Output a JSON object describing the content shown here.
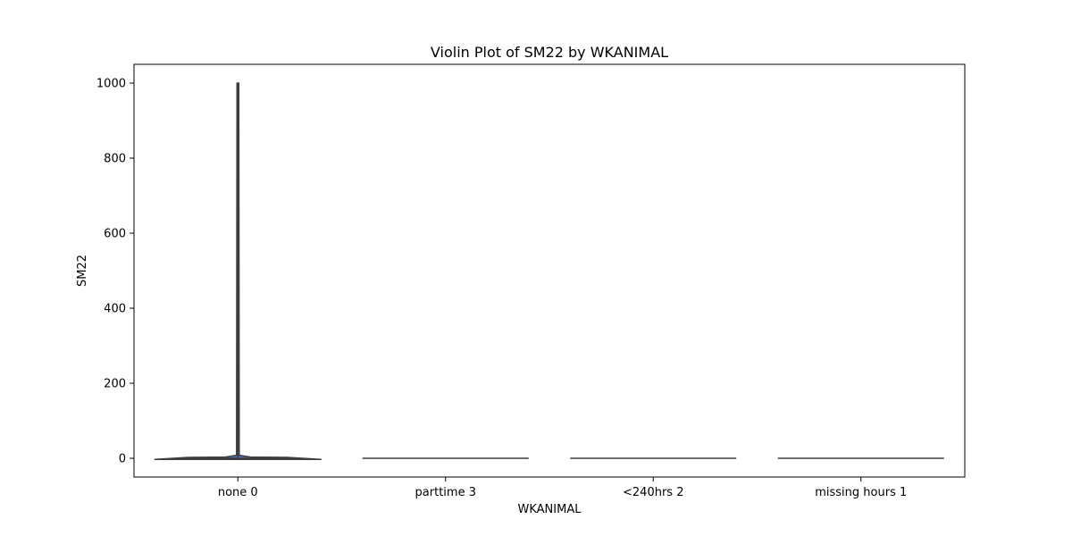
{
  "chart_data": {
    "type": "violin",
    "title": "Violin Plot of SM22 by WKANIMAL",
    "xlabel": "WKANIMAL",
    "ylabel": "SM22",
    "categories": [
      "none 0",
      "parttime 3",
      "<240hrs 2",
      "missing hours 1"
    ],
    "yticks": [
      0,
      200,
      400,
      600,
      800,
      1000
    ],
    "ylim": [
      -50,
      1050
    ],
    "grid": false,
    "legend": "none",
    "violins": [
      {
        "category": "none 0",
        "min": -3,
        "max": 1000,
        "median": 0,
        "q1": 0,
        "q3": 0,
        "density_peak_value": 0,
        "max_half_width": 0.8,
        "shape": "long thin tail up to max"
      },
      {
        "category": "parttime 3",
        "min": 0,
        "max": 0,
        "median": 0,
        "q1": 0,
        "q3": 0,
        "density_peak_value": 0,
        "max_half_width": 0.8,
        "shape": "flat"
      },
      {
        "category": "<240hrs 2",
        "min": 0,
        "max": 0,
        "median": 0,
        "q1": 0,
        "q3": 0,
        "density_peak_value": 0,
        "max_half_width": 0.8,
        "shape": "flat"
      },
      {
        "category": "missing hours 1",
        "min": 0,
        "max": 0,
        "median": 0,
        "q1": 0,
        "q3": 0,
        "density_peak_value": 0,
        "max_half_width": 0.8,
        "shape": "flat"
      }
    ],
    "colors": {
      "violin_fill": "#4c72b0",
      "violin_edge": "#3d3d3d",
      "axis": "#000000"
    }
  }
}
